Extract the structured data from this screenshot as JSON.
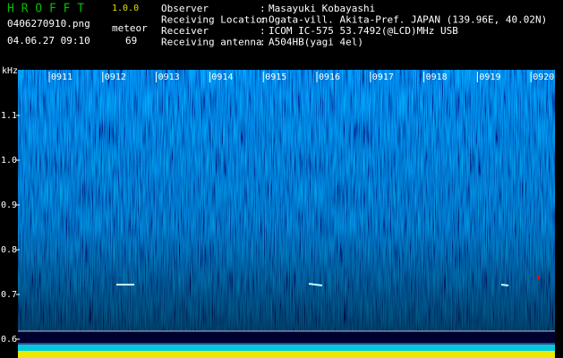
{
  "header": {
    "app_name": "H R O F F T",
    "version": "1.0.0",
    "file_name": "0406270910.png",
    "detection_label": "meteor",
    "timestamp": "04.06.27 09:10",
    "detection_count": "69"
  },
  "station": {
    "separator": ":",
    "fields": [
      {
        "label": "Observer",
        "value": "Masayuki Kobayashi"
      },
      {
        "label": "Receiving Location",
        "value": "Ogata-vill. Akita-Pref. JAPAN (139.96E, 40.02N)"
      },
      {
        "label": "Receiver",
        "value": "ICOM IC-575 53.7492(@LCD)MHz USB"
      },
      {
        "label": "Receiving antenna",
        "value": "A504HB(yagi 4el)"
      }
    ]
  },
  "spectrogram": {
    "frequency_unit": "kHz",
    "frequency_labels": [
      "1.1",
      "1.0",
      "0.9",
      "0.8",
      "0.7",
      "0.6"
    ],
    "time_labels": [
      "0911",
      "0912",
      "0913",
      "0914",
      "0915",
      "0916",
      "0917",
      "0918",
      "0919",
      "0920"
    ]
  }
}
